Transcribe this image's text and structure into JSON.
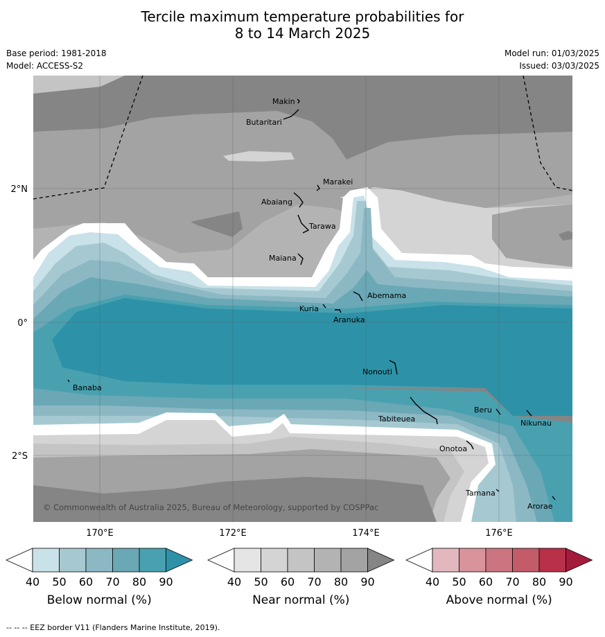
{
  "title_line1": "Tercile maximum temperature probabilities for",
  "title_line2": "8 to 14 March 2025",
  "base_period": "Base period: 1981-2018",
  "model": "Model: ACCESS-S2",
  "model_run": "Model run: 01/03/2025",
  "issued": "Issued: 03/03/2025",
  "copyright": "© Commonwealth of Australia 2025, Bureau of Meteorology, supported by COSPPac",
  "footer": "--  --  -- EEZ border V11 (Flanders Marine Institute, 2019).",
  "lat_labels": [
    "2°N",
    "0°",
    "2°S"
  ],
  "lon_labels": [
    "170°E",
    "172°E",
    "174°E",
    "176°E"
  ],
  "places": [
    {
      "name": "Makin"
    },
    {
      "name": "Butaritari"
    },
    {
      "name": "Marakei"
    },
    {
      "name": "Abaiang"
    },
    {
      "name": "Tarawa"
    },
    {
      "name": "Maiana"
    },
    {
      "name": "Abemama"
    },
    {
      "name": "Kuria"
    },
    {
      "name": "Aranuka"
    },
    {
      "name": "Nonouti"
    },
    {
      "name": "Banaba"
    },
    {
      "name": "Tabiteuea"
    },
    {
      "name": "Beru"
    },
    {
      "name": "Nikunau"
    },
    {
      "name": "Onotoa"
    },
    {
      "name": "Tamana"
    },
    {
      "name": "Arorae"
    }
  ],
  "colorbars": [
    {
      "title": "Below normal (%)",
      "ticks": [
        "40",
        "50",
        "60",
        "70",
        "80",
        "90"
      ],
      "colors": [
        "#ffffff",
        "#c9e1e8",
        "#a6c9d1",
        "#8cb8c4",
        "#6aa8b6",
        "#49a1b0",
        "#2d92a7"
      ]
    },
    {
      "title": "Near normal (%)",
      "ticks": [
        "40",
        "50",
        "60",
        "70",
        "80",
        "90"
      ],
      "colors": [
        "#ffffff",
        "#e5e5e5",
        "#d4d4d4",
        "#c4c4c4",
        "#b3b3b3",
        "#a3a3a3",
        "#858585"
      ]
    },
    {
      "title": "Above normal (%)",
      "ticks": [
        "40",
        "50",
        "60",
        "70",
        "80",
        "90"
      ],
      "colors": [
        "#ffffff",
        "#e2b8be",
        "#d8939b",
        "#cb7580",
        "#c45b69",
        "#b93049",
        "#a51b3c"
      ]
    }
  ]
}
